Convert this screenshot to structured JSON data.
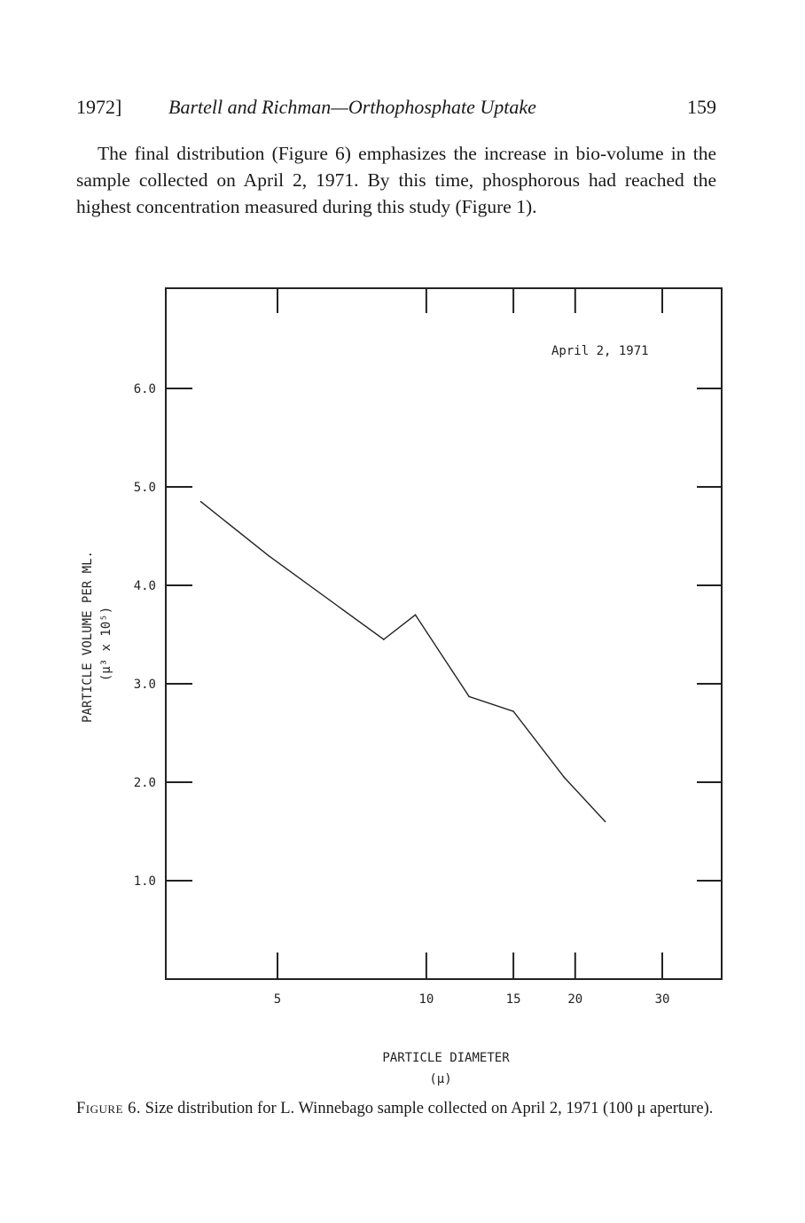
{
  "header": {
    "year": "1972]",
    "title": "Bartell and Richman—Orthophosphate Uptake",
    "page_number": "159"
  },
  "body": {
    "paragraph": "The final distribution (Figure 6) emphasizes the increase in bio-volume in the sample collected on April 2, 1971. By this time, phosphorous had reached the highest concentration measured during this study (Figure 1)."
  },
  "chart_data": {
    "type": "line",
    "annotation": "April 2, 1971",
    "xlabel": "PARTICLE DIAMETER",
    "xunit": "(μ)",
    "ylabel": "PARTICLE VOLUME PER ML.",
    "yunit": "(μ³ x 10⁵)",
    "x_scale": "log",
    "x_ticks": [
      5,
      10,
      15,
      20,
      30
    ],
    "x_tick_labels": [
      "5",
      "10",
      "15",
      "20",
      "30"
    ],
    "y_ticks": [
      1.0,
      2.0,
      3.0,
      4.0,
      5.0,
      6.0
    ],
    "y_tick_labels": [
      "1.0",
      "2.0",
      "3.0",
      "4.0",
      "5.0",
      "6.0"
    ],
    "ylim": [
      0,
      7
    ],
    "grid": false,
    "series": [
      {
        "x": [
          3.5,
          4.8,
          8.2,
          9.5,
          12.2,
          15.0,
          19.0,
          23.0
        ],
        "y": [
          4.85,
          4.3,
          3.45,
          3.7,
          2.87,
          2.72,
          2.05,
          1.6
        ]
      }
    ]
  },
  "caption": {
    "label": "Figure 6.",
    "text": "Size distribution for L. Winnebago sample collected on April 2, 1971 (100 μ aperture)."
  }
}
